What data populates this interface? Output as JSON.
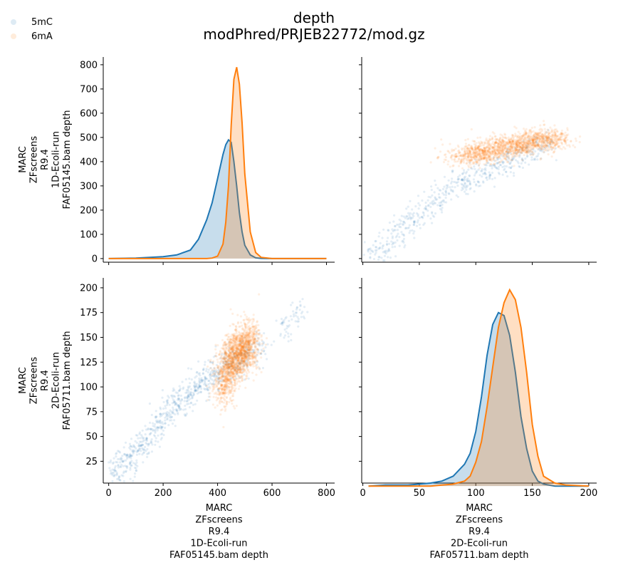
{
  "chart_data": {
    "type": "scatter",
    "title": "depth",
    "subtitle": "modPhred/PRJEB22772/mod.gz",
    "legend": {
      "placement": "top-left",
      "entries": [
        {
          "name": "5mC",
          "color": "#1f77b4"
        },
        {
          "name": "6mA",
          "color": "#ff7f0e"
        }
      ]
    },
    "variables": [
      {
        "key": "1d",
        "label_lines": [
          "MARC",
          "ZFscreens",
          "R9.4",
          "1D-Ecoli-run",
          "FAF05145.bam depth"
        ]
      },
      {
        "key": "2d",
        "label_lines": [
          "MARC",
          "ZFscreens",
          "R9.4",
          "2D-Ecoli-run",
          "FAF05711.bam depth"
        ]
      }
    ],
    "x_axes": {
      "1d": {
        "range": [
          -20,
          830
        ],
        "ticks": [
          0,
          200,
          400,
          600,
          800
        ]
      },
      "2d": {
        "range": [
          -1,
          207
        ],
        "ticks": [
          0,
          50,
          100,
          150,
          200
        ]
      }
    },
    "y_axes": {
      "row0": {
        "range": [
          -15,
          832
        ],
        "ticks": [
          0,
          100,
          200,
          300,
          400,
          500,
          600,
          700,
          800
        ]
      },
      "row1": {
        "range": [
          3,
          210
        ],
        "ticks": [
          25,
          50,
          75,
          100,
          125,
          150,
          175,
          200
        ]
      }
    },
    "kde_1d": {
      "x": [
        0,
        100,
        200,
        250,
        300,
        330,
        360,
        380,
        400,
        420,
        430,
        440,
        450,
        460,
        470,
        480,
        490,
        500,
        520,
        540,
        560,
        600,
        700,
        800
      ],
      "series": [
        {
          "name": "5mC",
          "density": [
            0,
            2,
            8,
            15,
            35,
            80,
            160,
            230,
            330,
            430,
            470,
            490,
            480,
            400,
            300,
            190,
            110,
            55,
            15,
            3,
            1,
            0,
            0,
            0
          ]
        },
        {
          "name": "6mA",
          "density": [
            0,
            0,
            0,
            0,
            0,
            0,
            0,
            2,
            10,
            60,
            150,
            300,
            550,
            740,
            790,
            720,
            560,
            350,
            110,
            25,
            5,
            0,
            0,
            0
          ]
        }
      ]
    },
    "kde_2d": {
      "x": [
        5,
        20,
        40,
        60,
        70,
        80,
        90,
        95,
        100,
        105,
        110,
        115,
        120,
        125,
        130,
        135,
        140,
        145,
        150,
        155,
        160,
        170,
        180,
        200
      ],
      "series": [
        {
          "name": "5mC",
          "density": [
            0,
            1,
            1,
            3,
            5,
            10,
            22,
            33,
            55,
            90,
            132,
            163,
            175,
            172,
            152,
            115,
            70,
            38,
            15,
            5,
            2,
            0,
            0,
            0
          ]
        },
        {
          "name": "6mA",
          "density": [
            0,
            0,
            0,
            0,
            1,
            2,
            5,
            10,
            24,
            45,
            80,
            120,
            160,
            185,
            198,
            188,
            160,
            115,
            62,
            30,
            10,
            3,
            1,
            0
          ]
        }
      ]
    },
    "scatter_1d_vs_2d": {
      "note_x": "1D-Ecoli-run FAF05145.bam depth",
      "note_y": "2D-Ecoli-run FAF05711.bam depth",
      "series": [
        {
          "name": "5mC",
          "x": [
            20,
            40,
            60,
            80,
            100,
            120,
            140,
            160,
            180,
            200,
            220,
            240,
            260,
            280,
            300,
            320,
            340,
            360,
            380,
            400,
            420,
            440,
            460,
            480,
            500,
            520,
            560,
            650,
            700
          ],
          "y": [
            11,
            14,
            22,
            28,
            35,
            42,
            45,
            55,
            60,
            70,
            75,
            82,
            85,
            92,
            95,
            100,
            102,
            108,
            110,
            113,
            118,
            120,
            124,
            128,
            132,
            135,
            140,
            160,
            175
          ]
        },
        {
          "name": "6mA",
          "x": [
            420,
            430,
            440,
            450,
            460,
            470,
            480,
            490,
            500,
            510,
            520
          ],
          "y": [
            100,
            110,
            118,
            124,
            128,
            132,
            135,
            138,
            140,
            142,
            145
          ]
        }
      ]
    },
    "scatter_2d_vs_1d": {
      "series": [
        {
          "name": "5mC",
          "x": [
            10,
            20,
            30,
            40,
            50,
            60,
            70,
            80,
            90,
            100,
            110,
            120,
            130,
            140,
            150,
            160
          ],
          "y": [
            25,
            55,
            100,
            150,
            180,
            220,
            260,
            300,
            320,
            340,
            360,
            385,
            400,
            420,
            440,
            470
          ]
        },
        {
          "name": "6mA",
          "x": [
            95,
            100,
            110,
            120,
            130,
            140,
            150,
            160,
            165
          ],
          "y": [
            420,
            430,
            445,
            455,
            465,
            475,
            480,
            490,
            495
          ]
        }
      ]
    }
  }
}
